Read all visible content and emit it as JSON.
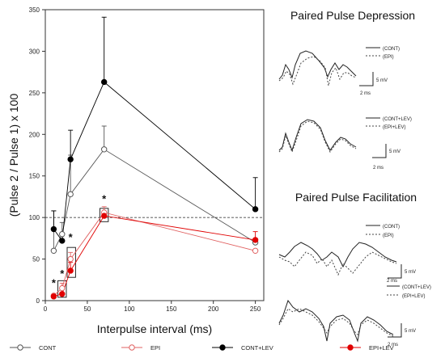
{
  "chart_data": {
    "type": "line",
    "xlabel": "Interpulse interval (ms)",
    "ylabel": "(Pulse 2 / Pulse 1) x 100",
    "xlim": [
      0,
      260
    ],
    "ylim": [
      0,
      350
    ],
    "xticks": [
      0,
      50,
      100,
      150,
      200,
      250
    ],
    "yticks": [
      0,
      50,
      100,
      150,
      200,
      250,
      300,
      350
    ],
    "reference_line": 100,
    "grid": false,
    "legend_position": "bottom",
    "series": [
      {
        "name": "CONT",
        "color": "#555555",
        "marker": "open-circle",
        "points": [
          {
            "x": 10,
            "y": 60,
            "err": 48
          },
          {
            "x": 20,
            "y": 80,
            "err": 14
          },
          {
            "x": 30,
            "y": 128,
            "err": 47
          },
          {
            "x": 70,
            "y": 182,
            "err": 28
          },
          {
            "x": 250,
            "y": 70,
            "err": 0
          }
        ]
      },
      {
        "name": "EPI",
        "color": "#e06060",
        "marker": "open-circle",
        "points": [
          {
            "x": 10,
            "y": 6,
            "err": 0
          },
          {
            "x": 20,
            "y": 15,
            "err": 6
          },
          {
            "x": 30,
            "y": 50,
            "err": 8
          },
          {
            "x": 70,
            "y": 106,
            "err": 7
          },
          {
            "x": 250,
            "y": 60,
            "err": 0
          }
        ]
      },
      {
        "name": "CONT+LEV",
        "color": "#000000",
        "marker": "filled-circle",
        "points": [
          {
            "x": 10,
            "y": 86,
            "err": 22
          },
          {
            "x": 20,
            "y": 72,
            "err": 0
          },
          {
            "x": 30,
            "y": 170,
            "err": 35
          },
          {
            "x": 70,
            "y": 263,
            "err": 78
          },
          {
            "x": 250,
            "y": 110,
            "err": 38
          }
        ]
      },
      {
        "name": "EPI+LEV",
        "color": "#e00000",
        "marker": "filled-circle",
        "points": [
          {
            "x": 10,
            "y": 5,
            "err": 0
          },
          {
            "x": 20,
            "y": 8,
            "err": 6
          },
          {
            "x": 30,
            "y": 36,
            "err": 10
          },
          {
            "x": 70,
            "y": 102,
            "err": 5
          },
          {
            "x": 250,
            "y": 73,
            "err": 10
          }
        ]
      }
    ],
    "significance": [
      {
        "x": 10,
        "y": 22,
        "label": "*"
      },
      {
        "x": 20,
        "y": 33,
        "label": "*"
      },
      {
        "x": 30,
        "y": 77,
        "label": "*"
      },
      {
        "x": 70,
        "y": 123,
        "label": "*"
      }
    ],
    "highlight_boxes": [
      {
        "x0": 15,
        "x1": 25,
        "y0": 4,
        "y1": 24
      },
      {
        "x0": 26,
        "x1": 36,
        "y0": 28,
        "y1": 64
      },
      {
        "x0": 65,
        "x1": 75,
        "y0": 95,
        "y1": 111
      }
    ]
  },
  "traces": {
    "depression_title": "Paired Pulse Depression",
    "facilitation_title": "Paired Pulse Facilitation",
    "scale_mv": "5 mV",
    "scale_ms": "2 ms",
    "legends": [
      {
        "solid": "(CONT)",
        "dashed": "(EPI)"
      },
      {
        "solid": "(CONT+LEV)",
        "dashed": "(EPI+LEV)"
      },
      {
        "solid": "(CONT)",
        "dashed": "(EPI)"
      },
      {
        "solid": "(CONT+LEV)",
        "dashed": "(EPI+LEV)"
      }
    ]
  }
}
